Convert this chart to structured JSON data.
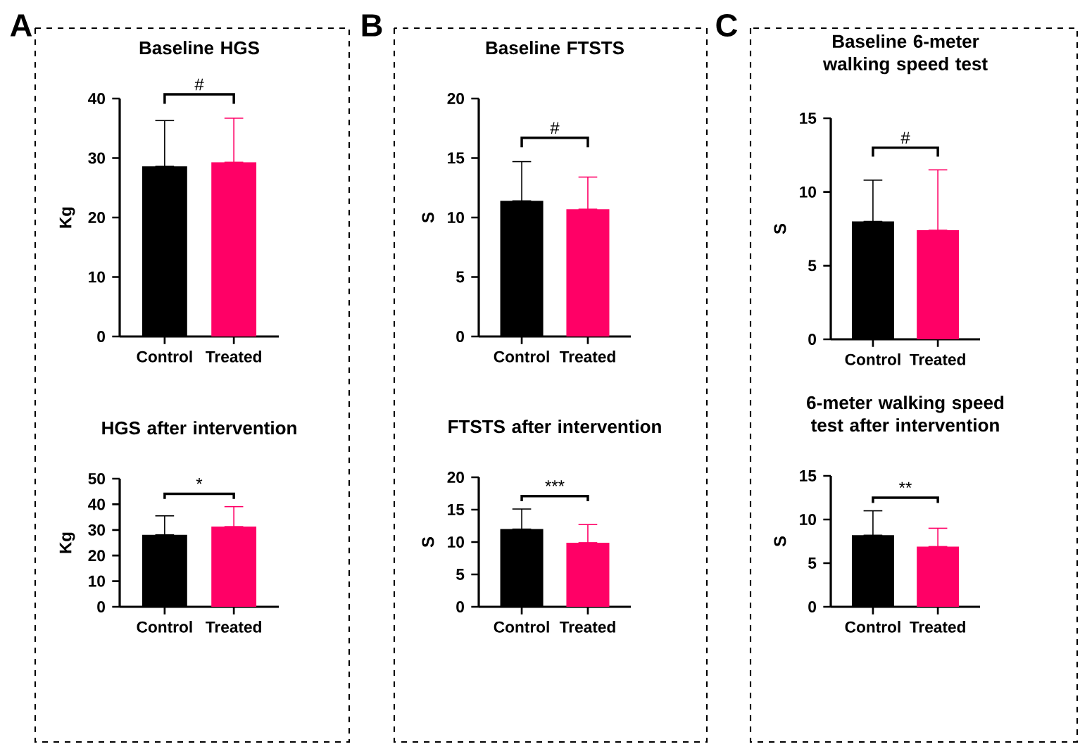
{
  "chart_data": [
    {
      "type": "bar",
      "title": "Baseline HGS",
      "ylabel": "Kg",
      "categories": [
        "Control",
        "Treated"
      ],
      "values": [
        28.6,
        29.3
      ],
      "colors": [
        "#000000",
        "#ff0066"
      ],
      "errors": [
        [
          28.6,
          36.3
        ],
        [
          29.3,
          36.7
        ]
      ],
      "ylim": [
        0,
        40
      ],
      "yticks": [
        0,
        10,
        20,
        30,
        40
      ],
      "annotations": [
        "A",
        "#"
      ]
    },
    {
      "type": "bar",
      "title": "HGS after intervention",
      "ylabel": "Kg",
      "categories": [
        "Control",
        "Treated"
      ],
      "values": [
        28.1,
        31.3
      ],
      "colors": [
        "#000000",
        "#ff0066"
      ],
      "errors": [
        [
          28.1,
          35.5
        ],
        [
          31.3,
          39.1
        ]
      ],
      "ylim": [
        0,
        50
      ],
      "yticks": [
        0,
        10,
        20,
        30,
        40,
        50
      ],
      "annotations": [
        "*"
      ]
    },
    {
      "type": "bar",
      "title": "Baseline FTSTS",
      "ylabel": "S",
      "categories": [
        "Control",
        "Treated"
      ],
      "values": [
        11.4,
        10.7
      ],
      "colors": [
        "#000000",
        "#ff0066"
      ],
      "errors": [
        [
          11.4,
          14.7
        ],
        [
          10.7,
          13.4
        ]
      ],
      "ylim": [
        0,
        20
      ],
      "yticks": [
        0,
        5,
        10,
        15,
        20
      ],
      "annotations": [
        "B",
        "#"
      ]
    },
    {
      "type": "bar",
      "title": "FTSTS after intervention",
      "ylabel": "S",
      "categories": [
        "Control",
        "Treated"
      ],
      "values": [
        12.0,
        9.9
      ],
      "colors": [
        "#000000",
        "#ff0066"
      ],
      "errors": [
        [
          12.0,
          15.1
        ],
        [
          9.9,
          12.7
        ]
      ],
      "ylim": [
        0,
        20
      ],
      "yticks": [
        0,
        5,
        10,
        15,
        20
      ],
      "annotations": [
        "***"
      ]
    },
    {
      "type": "bar",
      "title": "Baseline 6-meter walking speed test",
      "ylabel": "S",
      "categories": [
        "Control",
        "Treated"
      ],
      "values": [
        8.0,
        7.4
      ],
      "colors": [
        "#000000",
        "#ff0066"
      ],
      "errors": [
        [
          8.0,
          10.8
        ],
        [
          7.4,
          11.5
        ]
      ],
      "ylim": [
        0,
        15
      ],
      "yticks": [
        0,
        5,
        10,
        15
      ],
      "annotations": [
        "C",
        "#"
      ]
    },
    {
      "type": "bar",
      "title": "6-meter walking speed test after intervention",
      "ylabel": "S",
      "categories": [
        "Control",
        "Treated"
      ],
      "values": [
        8.2,
        6.9
      ],
      "colors": [
        "#000000",
        "#ff0066"
      ],
      "errors": [
        [
          8.2,
          11.0
        ],
        [
          6.9,
          9.0
        ]
      ],
      "ylim": [
        0,
        15
      ],
      "yticks": [
        0,
        5,
        10,
        15
      ],
      "annotations": [
        "**"
      ]
    }
  ]
}
